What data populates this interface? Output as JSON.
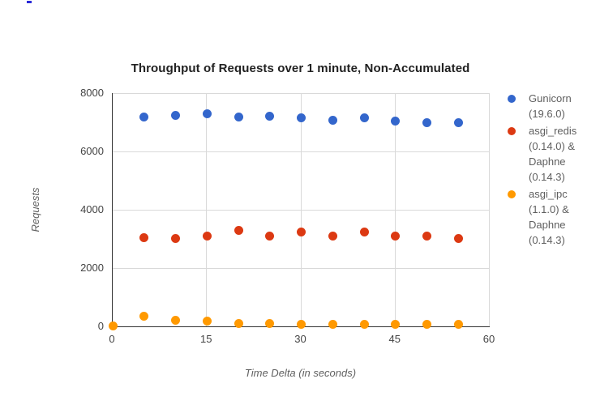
{
  "artifact": {
    "description": "clipped blue ui fragment at top-left",
    "color": "#2a2ad8"
  },
  "chart_data": {
    "type": "scatter",
    "title": "Throughput of Requests over 1 minute, Non-Accumulated",
    "xlabel": "Time Delta (in seconds)",
    "ylabel": "Requests",
    "xlim": [
      0,
      60
    ],
    "ylim": [
      0,
      8000
    ],
    "x_ticks": [
      0,
      15,
      30,
      45,
      60
    ],
    "y_ticks": [
      0,
      2000,
      4000,
      6000,
      8000
    ],
    "grid": true,
    "legend_position": "right",
    "marker": "circle",
    "axis_color": "#333333",
    "gridline_color": "#d9d9d9",
    "series": [
      {
        "name": "Gunicorn (19.6.0)",
        "legend_lines": [
          "Gunicorn",
          "(19.6.0)"
        ],
        "color": "#3366cc",
        "x": [
          5,
          10,
          15,
          20,
          25,
          30,
          35,
          40,
          45,
          50,
          55
        ],
        "y": [
          7170,
          7240,
          7280,
          7170,
          7200,
          7140,
          7060,
          7140,
          7030,
          7000,
          6980
        ]
      },
      {
        "name": "asgi_redis (0.14.0) & Daphne (0.14.3)",
        "legend_lines": [
          "asgi_redis",
          "(0.14.0) &",
          "Daphne",
          "(0.14.3)"
        ],
        "color": "#dc3912",
        "x": [
          5,
          10,
          15,
          20,
          25,
          30,
          35,
          40,
          45,
          50,
          55
        ],
        "y": [
          3040,
          3010,
          3090,
          3280,
          3090,
          3230,
          3090,
          3230,
          3090,
          3110,
          3020
        ]
      },
      {
        "name": "asgi_ipc (1.1.0) & Daphne (0.14.3)",
        "legend_lines": [
          "asgi_ipc",
          "(1.1.0) &",
          "Daphne",
          "(0.14.3)"
        ],
        "color": "#ff9900",
        "x": [
          0,
          5,
          10,
          15,
          20,
          25,
          30,
          35,
          40,
          45,
          50,
          55
        ],
        "y": [
          20,
          360,
          220,
          180,
          110,
          100,
          80,
          60,
          60,
          60,
          60,
          60
        ]
      }
    ]
  }
}
